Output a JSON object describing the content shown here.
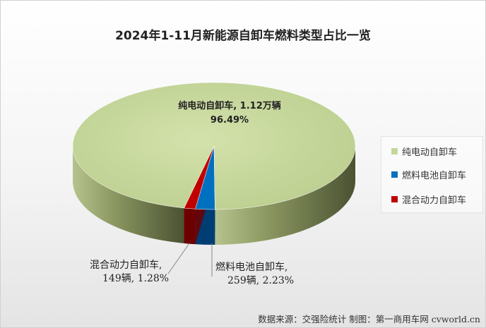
{
  "chart_data": {
    "type": "pie",
    "title": "2024年1-11月新能源自卸车燃料类型占比一览",
    "categories": [
      "纯电动自卸车",
      "燃料电池自卸车",
      "混合动力自卸车"
    ],
    "values": [
      96.49,
      2.23,
      1.28
    ],
    "colors": [
      "#c4d79b",
      "#0070c0",
      "#c00000"
    ],
    "data_labels": [
      {
        "line1": "纯电动自卸车, 1.12万辆",
        "line2": "96.49%"
      },
      {
        "line1": "燃料电池自卸车,",
        "line2": "259辆, 2.23%"
      },
      {
        "line1": "混合动力自卸车,",
        "line2": "149辆, 1.28%"
      }
    ],
    "legend_position": "right"
  },
  "source_text": "数据来源：交强险统计 制图：第一商用车网 cvworld.cn"
}
